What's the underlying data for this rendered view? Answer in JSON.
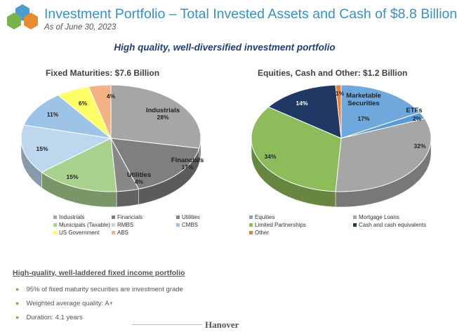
{
  "header": {
    "title": "Investment Portfolio – Total Invested Assets and Cash of $8.8 Billion",
    "subtitle": "As of June 30, 2023",
    "headline": "High quality, well-diversified investment portfolio"
  },
  "logo": {
    "colors": [
      "#4a9bd0",
      "#78b44a",
      "#e88a2e"
    ]
  },
  "chart_data": [
    {
      "type": "pie",
      "title": "Fixed Maturities: $7.6 Billion",
      "slices": [
        {
          "label": "Industrials",
          "value": 28,
          "pct_label": "28%",
          "color": "#a6a6a6",
          "text_color": "#222"
        },
        {
          "label": "Financials",
          "value": 17,
          "pct_label": "17%",
          "color": "#7f7f7f",
          "text_color": "#222"
        },
        {
          "label": "Utilities",
          "value": 4,
          "pct_label": "4%",
          "color": "#888888",
          "text_color": "#222"
        },
        {
          "label": "Municipals (Taxable)",
          "value": 15,
          "pct_label": "15%",
          "color": "#a9d18e",
          "text_color": "#222"
        },
        {
          "label": "RMBS",
          "value": 15,
          "pct_label": "15%",
          "color": "#bdd7ee",
          "text_color": "#222"
        },
        {
          "label": "CMBS",
          "value": 11,
          "pct_label": "11%",
          "color": "#9dc3e6",
          "text_color": "#222"
        },
        {
          "label": "US Government",
          "value": 6,
          "pct_label": "6%",
          "color": "#ffff66",
          "text_color": "#222"
        },
        {
          "label": "ABS",
          "value": 4,
          "pct_label": "4%",
          "color": "#f4b183",
          "text_color": "#222"
        }
      ]
    },
    {
      "type": "pie",
      "title": "Equities, Cash and Other: $1.2 Billion",
      "slices": [
        {
          "label": "Equities",
          "value": 17,
          "pct_label": "17%",
          "color": "#6fa8dc",
          "text_color": "#222"
        },
        {
          "label": "ETFs",
          "value": 2,
          "pct_label": "2%",
          "color": "#5b9bd5",
          "text_color": "#222"
        },
        {
          "label": "Mortgage Loans",
          "value": 32,
          "pct_label": "32%",
          "color": "#a6a6a6",
          "text_color": "#222"
        },
        {
          "label": "Limited Partnerships",
          "value": 34,
          "pct_label": "34%",
          "color": "#8fbc5a",
          "text_color": "#222"
        },
        {
          "label": "Cash and cash equivalents",
          "value": 14,
          "pct_label": "14%",
          "color": "#1f3864",
          "text_color": "#ffffff"
        },
        {
          "label": "Other",
          "value": 1,
          "pct_label": "1%",
          "color": "#ed7d31",
          "text_color": "#222"
        }
      ],
      "annotations": {
        "marketable": "Marketable Securities",
        "etfs": "ETFs"
      }
    }
  ],
  "legend_fixed": [
    {
      "label": "Industrials",
      "color": "#a6a6a6"
    },
    {
      "label": "Financials",
      "color": "#7f7f7f"
    },
    {
      "label": "Utilities",
      "color": "#888888"
    },
    {
      "label": "Municipals (Taxable)",
      "color": "#a9d18e"
    },
    {
      "label": "RMBS",
      "color": "#bdd7ee"
    },
    {
      "label": "CMBS",
      "color": "#9dc3e6"
    },
    {
      "label": "US Government",
      "color": "#ffff66"
    },
    {
      "label": "ABS",
      "color": "#f4b183"
    }
  ],
  "legend_equity": [
    {
      "label": "Equities",
      "color": "#6fa8dc"
    },
    {
      "label": "Mortgage Loans",
      "color": "#a6a6a6"
    },
    {
      "label": "Limited Partnerships",
      "color": "#8fbc5a"
    },
    {
      "label": "Cash and cash equivalents",
      "color": "#1f3864"
    },
    {
      "label": "Other",
      "color": "#ed7d31"
    }
  ],
  "bottom": {
    "heading": "High-quality, well-laddered fixed income portfolio",
    "bullets": [
      "95% of fixed maturity securities are investment grade",
      "Weighted average quality: A+",
      "Duration: 4.1 years"
    ],
    "brand": "Hanover"
  }
}
